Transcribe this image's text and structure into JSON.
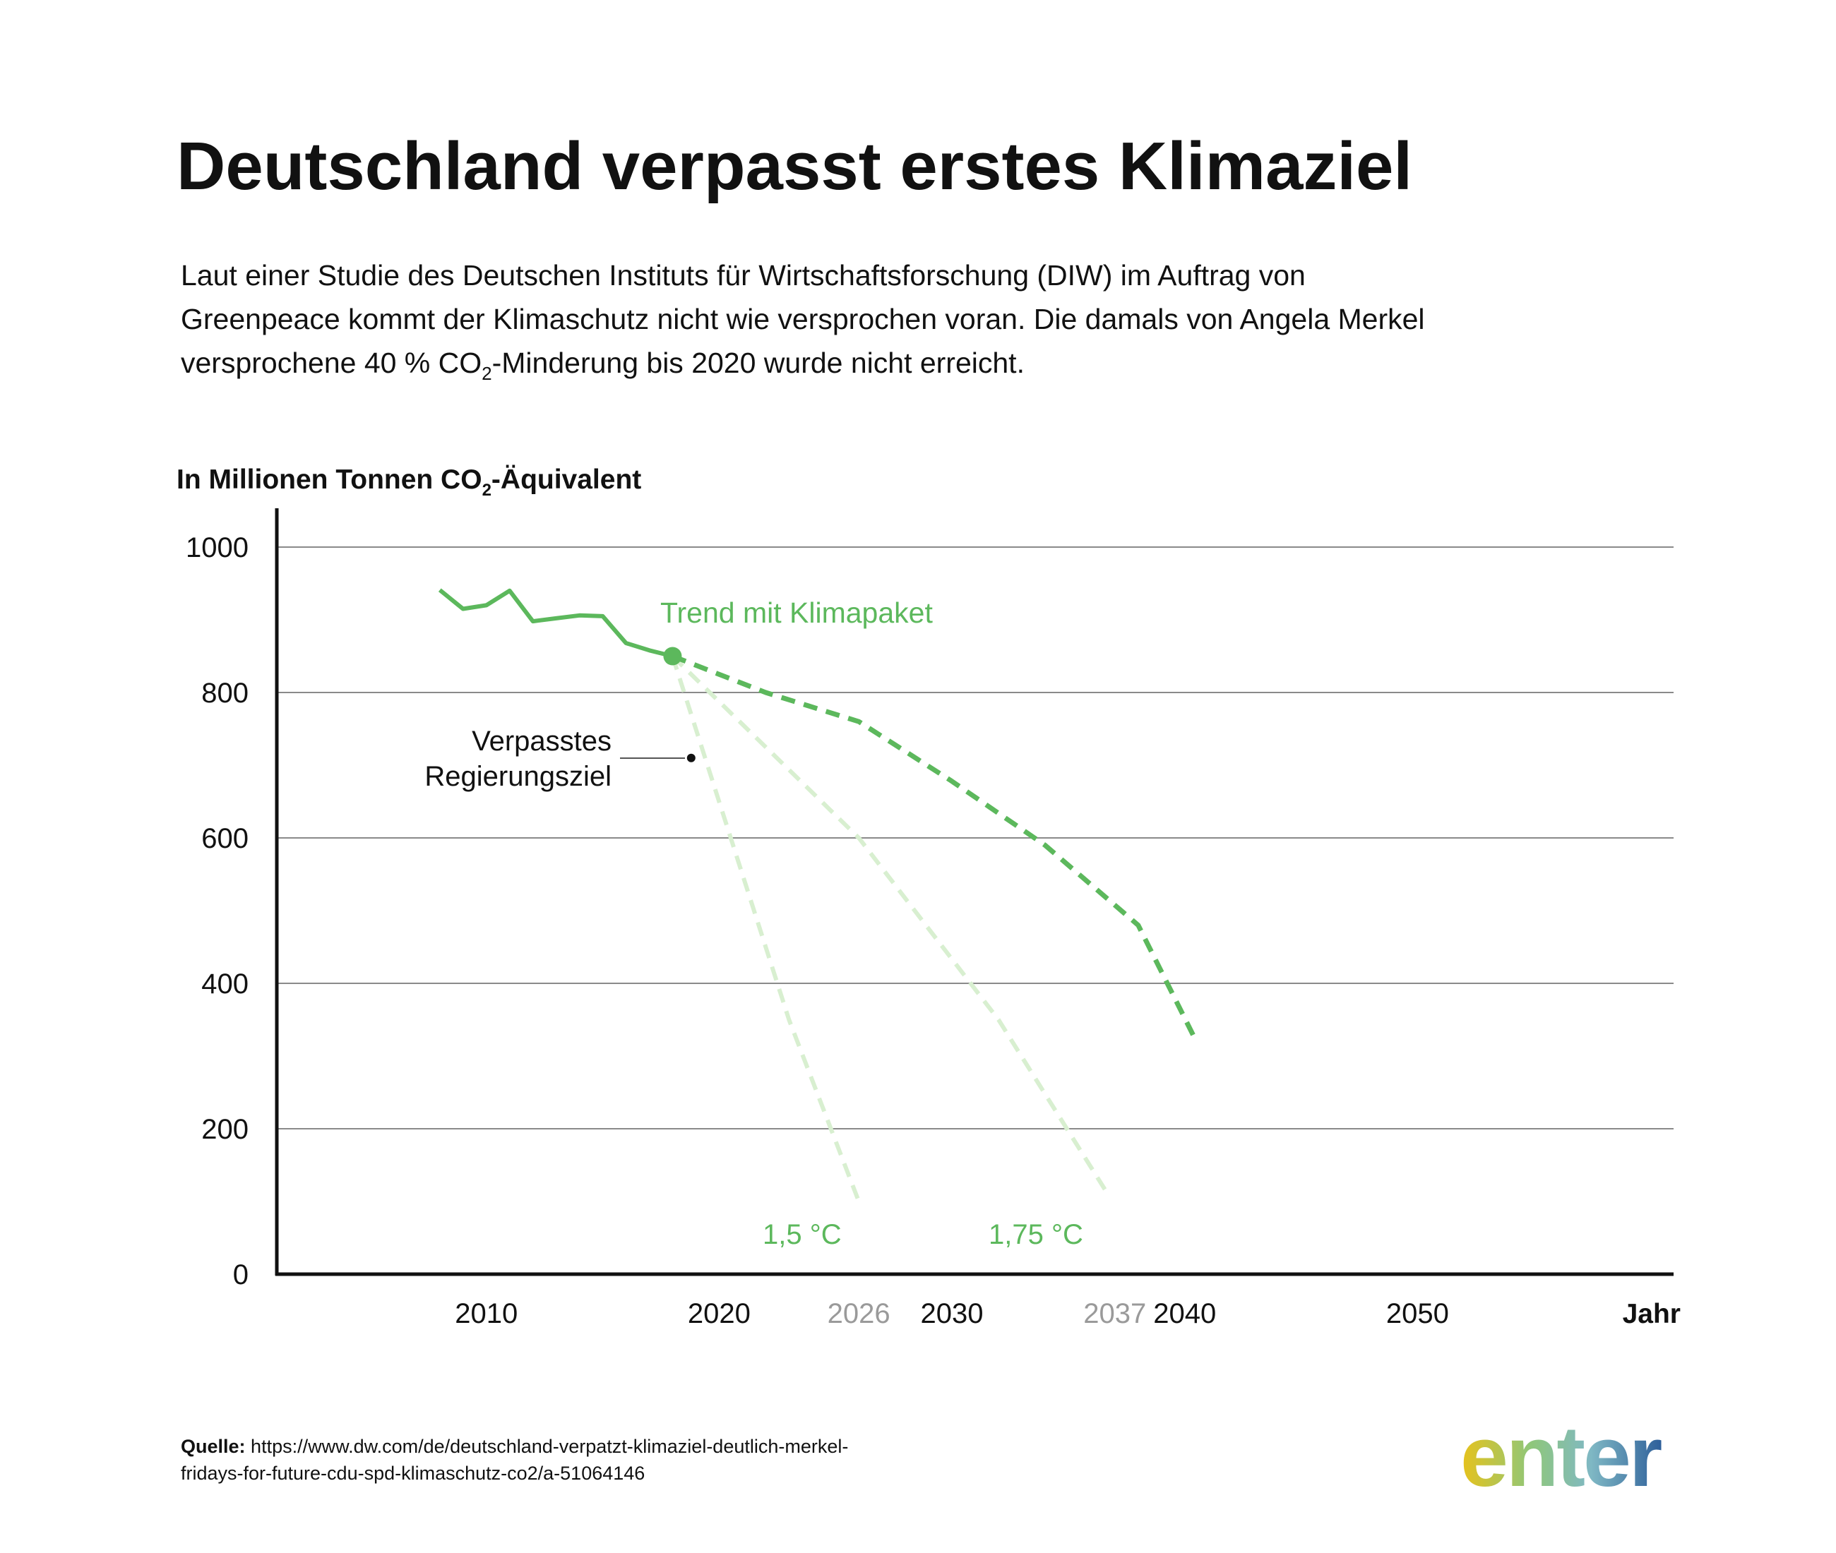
{
  "title": "Deutschland verpasst erstes Klimaziel",
  "subtitle": {
    "line1": "Laut einer Studie des Deutschen Instituts für Wirtschaftsforschung (DIW) im Auftrag von",
    "line2": "Greenpeace kommt der Klimaschutz nicht wie versprochen voran. Die damals von Angela Merkel",
    "line3_pre": "versprochene 40 % CO",
    "line3_sub": "2",
    "line3_post": "-Minderung bis 2020 wurde nicht erreicht."
  },
  "source": {
    "label": "Quelle:",
    "url_line1": "https://www.dw.com/de/deutschland-verpatzt-klimaziel-deutlich-merkel-",
    "url_line2": "fridays-for-future-cdu-spd-klimaschutz-co2/a-51064146"
  },
  "logo": {
    "text": "enter",
    "gradient": [
      "#e8c21a",
      "#8fc77a",
      "#7fb8c4",
      "#2e5f9a"
    ]
  },
  "colors": {
    "green_solid": "#5cb85c",
    "green_light": "#d8efd0",
    "axis": "#111111",
    "grid": "#8a8a8a",
    "muted_tick": "#9a9a9a"
  },
  "chart_data": {
    "type": "line",
    "ylabel_pre": "In Millionen Tonnen CO",
    "ylabel_sub": "2",
    "ylabel_post": "-Äquivalent",
    "xlabel": "Jahr",
    "xlim": [
      2001,
      2061
    ],
    "ylim": [
      0,
      1000
    ],
    "y_ticks": [
      0,
      200,
      400,
      600,
      800,
      1000
    ],
    "x_ticks": [
      {
        "value": 2010,
        "label": "2010",
        "muted": false
      },
      {
        "value": 2020,
        "label": "2020",
        "muted": false
      },
      {
        "value": 2026,
        "label": "2026",
        "muted": true
      },
      {
        "value": 2030,
        "label": "2030",
        "muted": false
      },
      {
        "value": 2037,
        "label": "2037",
        "muted": true
      },
      {
        "value": 2040,
        "label": "2040",
        "muted": false
      },
      {
        "value": 2050,
        "label": "2050",
        "muted": false
      }
    ],
    "series": [
      {
        "key": "historic",
        "style": "solid",
        "x": [
          2008,
          2009,
          2010,
          2011,
          2012,
          2013,
          2014,
          2015,
          2016,
          2017,
          2018
        ],
        "y": [
          941,
          915,
          920,
          940,
          898,
          902,
          906,
          905,
          868,
          858,
          850
        ]
      },
      {
        "key": "trend",
        "name": "Trend mit Klimapaket",
        "style": "dashed",
        "x": [
          2018,
          2022,
          2026,
          2030,
          2034,
          2038,
          2040.5
        ],
        "y": [
          850,
          800,
          760,
          678,
          590,
          480,
          320
        ]
      },
      {
        "key": "target_175",
        "name": "1,75 °C",
        "style": "dashed-light",
        "x": [
          2018,
          2026,
          2032,
          2036.7
        ],
        "y": [
          850,
          600,
          350,
          110
        ]
      },
      {
        "key": "target_15",
        "name": "1,5 °C",
        "style": "dashed-light",
        "x": [
          2018,
          2020.5,
          2023,
          2026
        ],
        "y": [
          850,
          600,
          350,
          100
        ]
      }
    ],
    "highlight_point": {
      "x": 2018,
      "y": 850
    },
    "annotation": {
      "line1": "Verpasstes",
      "line2": "Regierungsziel",
      "point": {
        "x": 2018.8,
        "y": 710
      }
    }
  }
}
